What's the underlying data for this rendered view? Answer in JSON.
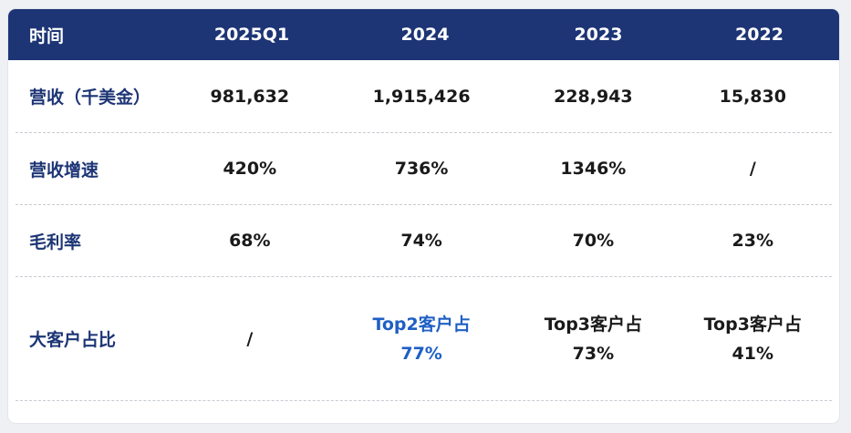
{
  "header": {
    "label": "时间",
    "columns": [
      "2025Q1",
      "2024",
      "2023",
      "2022"
    ]
  },
  "rows": [
    {
      "label": "营收（千美金）",
      "values": [
        "981,632",
        "1,915,426",
        "228,943",
        "15,830"
      ]
    },
    {
      "label": "营收增速",
      "values": [
        "420%",
        "736%",
        "1346%",
        "/"
      ]
    },
    {
      "label": "毛利率",
      "values": [
        "68%",
        "74%",
        "70%",
        "23%"
      ]
    },
    {
      "label": "大客户占比",
      "values": [
        {
          "line1": "/"
        },
        {
          "line1": "Top2客户占",
          "line2": "77%"
        },
        {
          "line1": "Top3客户占",
          "line2": "73%"
        },
        {
          "line1": "Top3客户占",
          "line2": "41%"
        }
      ]
    }
  ],
  "colors": {
    "header_bg": "#1d3575",
    "label_text": "#1d3575",
    "highlight_text": "#1f5fc4",
    "body_text": "#1a1a1a"
  }
}
